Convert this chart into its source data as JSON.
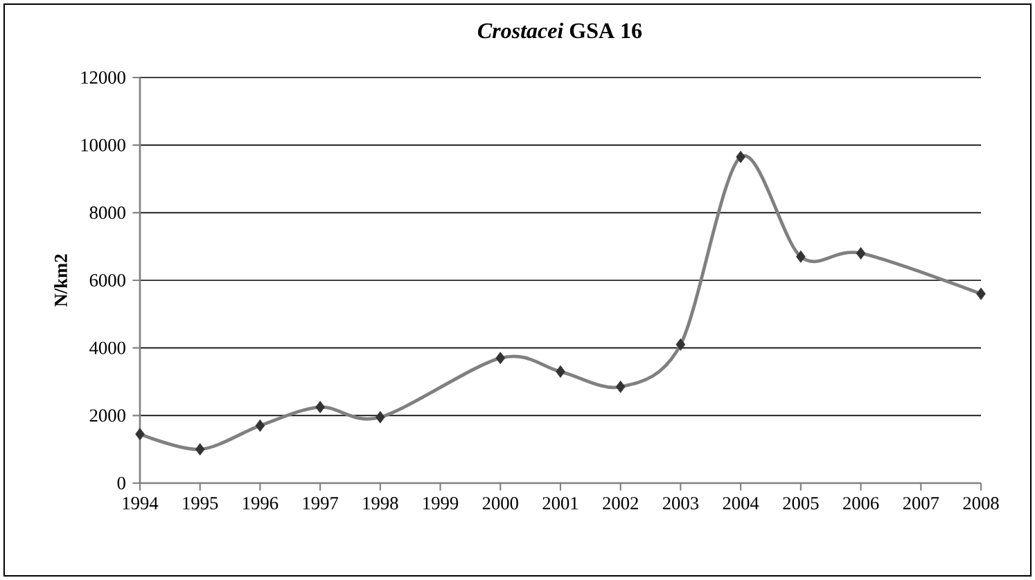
{
  "chart_data": {
    "type": "line",
    "title": "*Crostacei* GSA 16",
    "ylabel": "N/km2",
    "x": [
      1994,
      1995,
      1996,
      1997,
      1998,
      2000,
      2001,
      2002,
      2003,
      2004,
      2005,
      2006,
      2008
    ],
    "series": [
      {
        "color": "#808080",
        "values": [
          1450,
          1000,
          1700,
          2250,
          1950,
          3700,
          3300,
          2850,
          4100,
          9650,
          6700,
          6800,
          5600
        ]
      }
    ],
    "xlim": [
      1994,
      2008
    ],
    "xticks": [
      1994,
      1995,
      1996,
      1997,
      1998,
      1999,
      2000,
      2001,
      2002,
      2003,
      2004,
      2005,
      2006,
      2007,
      2008
    ],
    "ylim": [
      0,
      12000
    ],
    "yticks": [
      0,
      2000,
      4000,
      6000,
      8000,
      10000,
      12000
    ],
    "grid": "y",
    "marker": "diamond",
    "line_style": "solid"
  }
}
